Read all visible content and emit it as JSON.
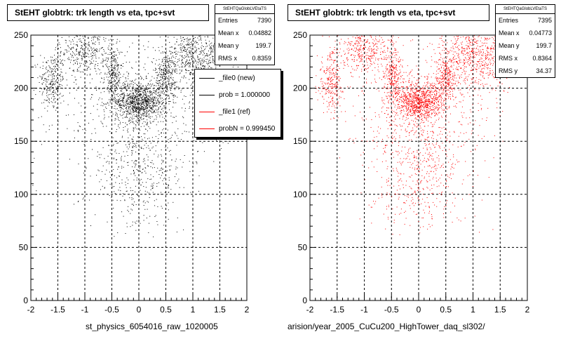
{
  "chart_data": [
    {
      "type": "scatter",
      "title": "StEHT globtrk: trk length vs eta, tpc+svt",
      "xlabel": "st_physics_6054016_raw_1020005",
      "ylabel": "",
      "xlim": [
        -2,
        2
      ],
      "ylim": [
        0,
        250
      ],
      "xticks": [
        "-2",
        "-1.5",
        "-1",
        "-0.5",
        "0",
        "0.5",
        "1",
        "1.5",
        "2"
      ],
      "yticks": [
        "0",
        "50",
        "100",
        "150",
        "200",
        "250"
      ],
      "grid": true,
      "marker_color": "#000000",
      "stats": {
        "header": "StEHTQaGlobLVEtaTS",
        "rows": [
          {
            "label": "Entries",
            "value": "7390"
          },
          {
            "label": "Mean x",
            "value": "0.04882"
          },
          {
            "label": "Mean y",
            "value": "199.7"
          },
          {
            "label": "RMS x",
            "value": "0.8359"
          }
        ]
      },
      "legend": {
        "placement": "right",
        "entries": [
          {
            "label": "_file0 (new)",
            "color": "#000000"
          },
          {
            "label": "prob = 1.000000",
            "color": "#000000"
          },
          {
            "label": "_file1 (ref)",
            "color": "#ff0000"
          },
          {
            "label": "probN = 0.999450",
            "color": "#ff0000"
          }
        ]
      },
      "density_regions": [
        {
          "x_mean": -1.62,
          "x_sd": 0.12,
          "y_mean": 206,
          "y_sd": 14,
          "count": 260
        },
        {
          "x_mean": -1.0,
          "x_sd": 0.22,
          "y_mean": 236,
          "y_sd": 12,
          "count": 360
        },
        {
          "x_mean": -0.48,
          "x_sd": 0.08,
          "y_mean": 212,
          "y_sd": 14,
          "count": 260
        },
        {
          "x_mean": 0.0,
          "x_sd": 0.22,
          "y_mean": 188,
          "y_sd": 9,
          "count": 900
        },
        {
          "x_mean": 0.5,
          "x_sd": 0.1,
          "y_mean": 210,
          "y_sd": 14,
          "count": 300
        },
        {
          "x_mean": 0.9,
          "x_sd": 0.2,
          "y_mean": 232,
          "y_sd": 14,
          "count": 340
        },
        {
          "x_mean": 1.3,
          "x_sd": 0.2,
          "y_mean": 230,
          "y_sd": 14,
          "count": 240
        },
        {
          "x_mean": 0.0,
          "x_sd": 0.45,
          "y_mean": 125,
          "y_sd": 30,
          "count": 500
        },
        {
          "x_mean": 0.0,
          "x_sd": 0.8,
          "y_mean": 190,
          "y_sd": 35,
          "count": 500
        }
      ]
    },
    {
      "type": "scatter",
      "title": "StEHT globtrk: trk length vs eta, tpc+svt",
      "xlabel": "arision/year_2005_CuCu200_HighTower_daq_sl302/",
      "ylabel": "",
      "xlim": [
        -2,
        2
      ],
      "ylim": [
        0,
        250
      ],
      "xticks": [
        "-2",
        "-1.5",
        "-1",
        "-0.5",
        "0",
        "0.5",
        "1",
        "1.5",
        "2"
      ],
      "yticks": [
        "0",
        "50",
        "100",
        "150",
        "200",
        "250"
      ],
      "grid": true,
      "marker_color": "#ff0000",
      "stats": {
        "header": "StEHTQaGlobLVEtaTS",
        "rows": [
          {
            "label": "Entries",
            "value": "7395"
          },
          {
            "label": "Mean x",
            "value": "0.04773"
          },
          {
            "label": "Mean y",
            "value": "199.7"
          },
          {
            "label": "RMS x",
            "value": "0.8364"
          },
          {
            "label": "RMS y",
            "value": "34.37"
          }
        ]
      },
      "density_regions": [
        {
          "x_mean": -1.62,
          "x_sd": 0.12,
          "y_mean": 206,
          "y_sd": 14,
          "count": 260
        },
        {
          "x_mean": -1.0,
          "x_sd": 0.22,
          "y_mean": 236,
          "y_sd": 12,
          "count": 360
        },
        {
          "x_mean": -0.48,
          "x_sd": 0.08,
          "y_mean": 212,
          "y_sd": 14,
          "count": 260
        },
        {
          "x_mean": 0.0,
          "x_sd": 0.22,
          "y_mean": 188,
          "y_sd": 9,
          "count": 900
        },
        {
          "x_mean": 0.5,
          "x_sd": 0.1,
          "y_mean": 210,
          "y_sd": 14,
          "count": 300
        },
        {
          "x_mean": 0.9,
          "x_sd": 0.2,
          "y_mean": 232,
          "y_sd": 14,
          "count": 340
        },
        {
          "x_mean": 1.3,
          "x_sd": 0.2,
          "y_mean": 230,
          "y_sd": 14,
          "count": 240
        },
        {
          "x_mean": 0.0,
          "x_sd": 0.45,
          "y_mean": 125,
          "y_sd": 30,
          "count": 500
        },
        {
          "x_mean": 0.0,
          "x_sd": 0.8,
          "y_mean": 190,
          "y_sd": 35,
          "count": 500
        }
      ]
    }
  ]
}
